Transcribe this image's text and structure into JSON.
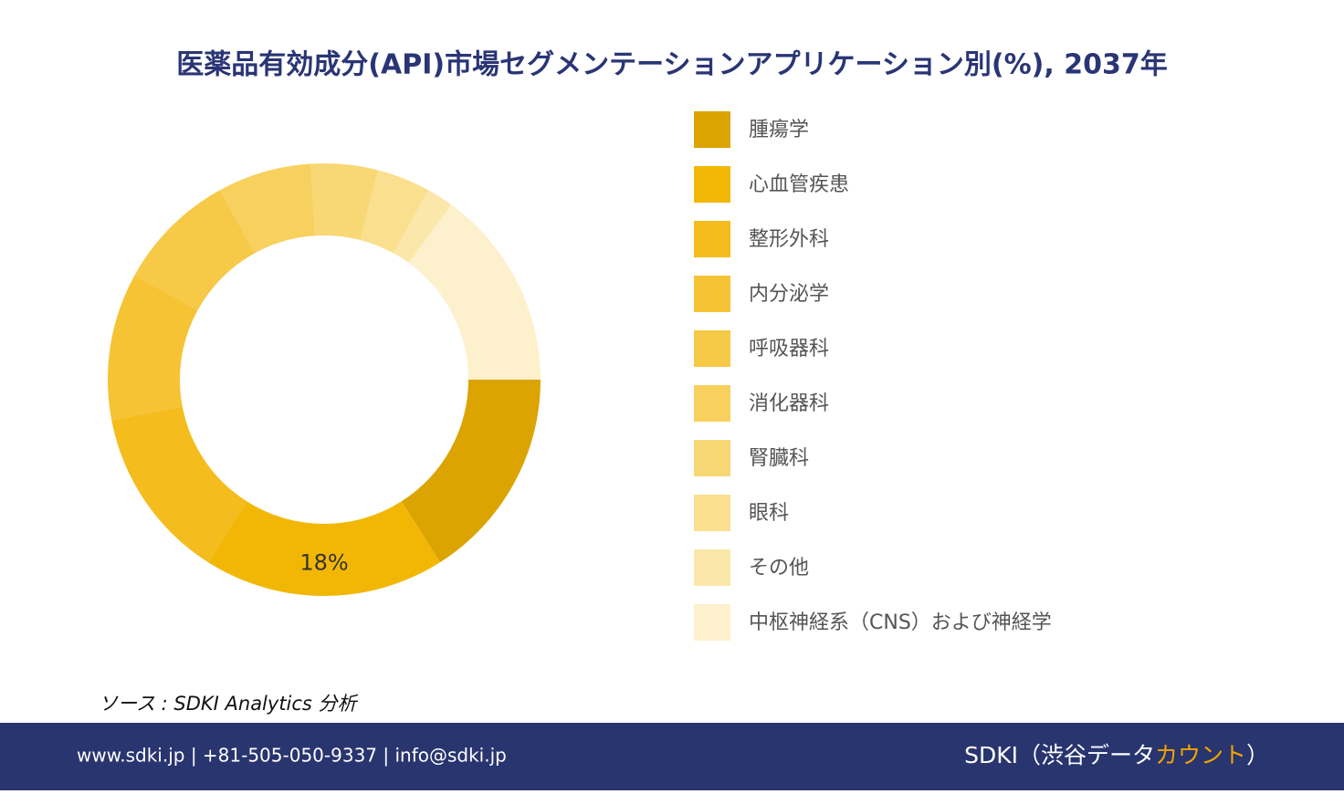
{
  "chart_data": {
    "type": "donut",
    "title": "医薬品有効成分(API)市場セグメンテーションアプリケーション別(%), 2037年",
    "categories": [
      "腫瘍学",
      "心血管疾患",
      "整形外科",
      "内分泌学",
      "呼吸器科",
      "消化器科",
      "腎臓科",
      "眼科",
      "その他",
      "中枢神経系（CNS）および神経学"
    ],
    "values": [
      16,
      18,
      13,
      11,
      9,
      7,
      5,
      4,
      2,
      15
    ],
    "value_labels": [
      null,
      "18%",
      null,
      null,
      null,
      null,
      null,
      null,
      null,
      null
    ],
    "colors": [
      "#dba400",
      "#f2b705",
      "#f4bc1c",
      "#f5c334",
      "#f6c946",
      "#f7d05e",
      "#f8d775",
      "#fadf8e",
      "#fbe7aa",
      "#fdf0cd"
    ],
    "legend": "right"
  },
  "source": "ソース : SDKI Analytics 分析",
  "footer": {
    "contact": "www.sdki.jp | +81-505-050-9337 | info@sdki.jp",
    "brand": "SDKI（渋谷データ",
    "brand_accent": "カウント",
    "brand_end": "）"
  }
}
